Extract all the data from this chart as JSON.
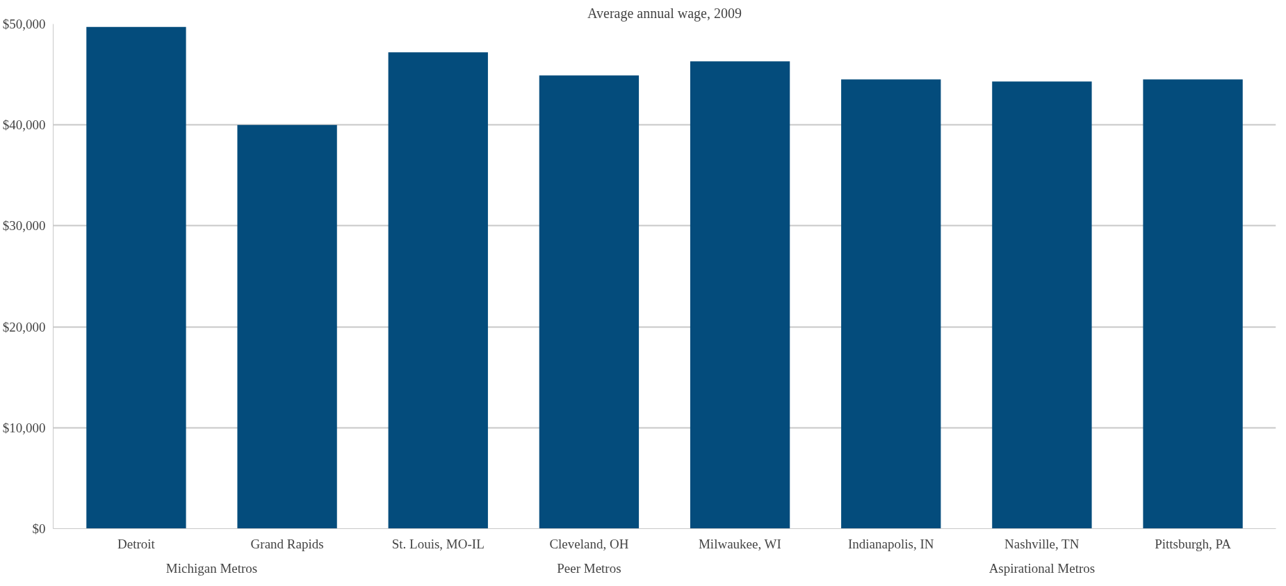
{
  "chart_data": {
    "type": "bar",
    "title": "Average annual wage, 2009",
    "categories": [
      "Detroit",
      "Grand Rapids",
      "St. Louis, MO-IL",
      "Cleveland, OH",
      "Milwaukee, WI",
      "Indianapolis, IN",
      "Nashville, TN",
      "Pittsburgh, PA"
    ],
    "values": [
      49700,
      40000,
      47200,
      44900,
      46300,
      44500,
      44300,
      44500
    ],
    "color": "#044c7c",
    "ylim": [
      0,
      50000
    ],
    "yticks": [
      {
        "value": 0,
        "label": "$0"
      },
      {
        "value": 10000,
        "label": "$10,000"
      },
      {
        "value": 20000,
        "label": "$20,000"
      },
      {
        "value": 30000,
        "label": "$30,000"
      },
      {
        "value": 40000,
        "label": "$40,000"
      },
      {
        "value": 50000,
        "label": "$50,000"
      }
    ],
    "annotations": [
      "Michigan Metros",
      "Peer Metros",
      "Aspirational Metros"
    ],
    "grid": "y"
  }
}
